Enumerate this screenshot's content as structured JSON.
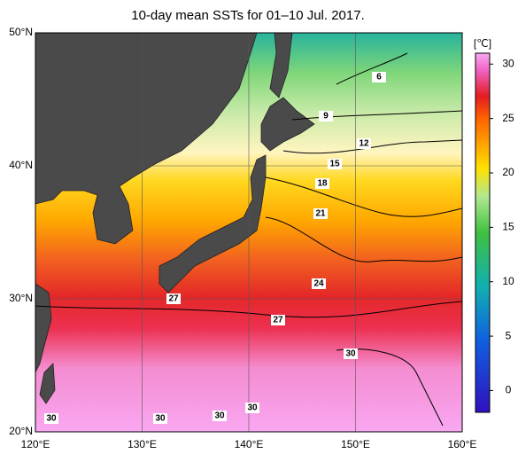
{
  "title": "10-day mean SSTs for 01–10 Jul. 2017.",
  "lat_ticks": [
    {
      "value": 50,
      "label": "50°N"
    },
    {
      "value": 40,
      "label": "40°N"
    },
    {
      "value": 30,
      "label": "30°N"
    },
    {
      "value": 20,
      "label": "20°N"
    }
  ],
  "lon_ticks": [
    {
      "value": 120,
      "label": "120°E"
    },
    {
      "value": 130,
      "label": "130°E"
    },
    {
      "value": 140,
      "label": "140°E"
    },
    {
      "value": 150,
      "label": "150°E"
    },
    {
      "value": 160,
      "label": "160°E"
    }
  ],
  "colorbar": {
    "unit": "[℃]",
    "range": [
      -2,
      31
    ],
    "ticks": [
      0,
      5,
      10,
      15,
      20,
      25,
      30
    ]
  },
  "contour_labels": [
    "6",
    "9",
    "12",
    "15",
    "18",
    "21",
    "24",
    "27",
    "27",
    "30",
    "30",
    "30",
    "30",
    "30"
  ]
}
